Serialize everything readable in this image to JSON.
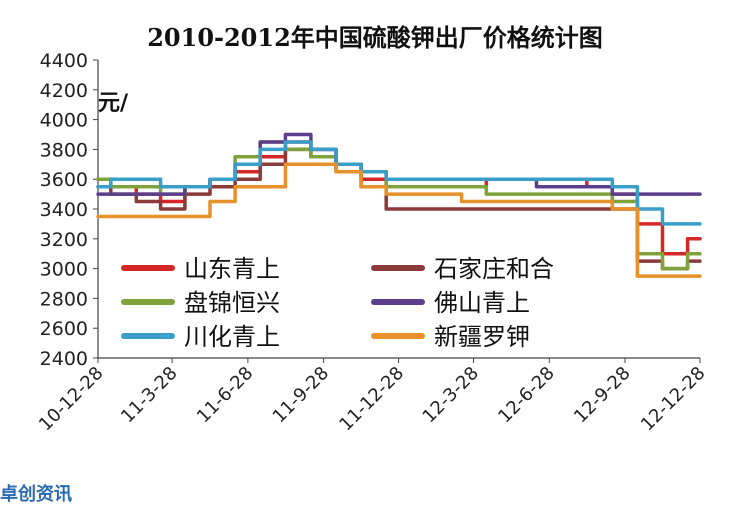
{
  "chart_data": {
    "type": "line",
    "title": "2010-2012年中国硫酸钾出厂价格统计图",
    "ylabel": "元/",
    "ylim": [
      2400,
      4400
    ],
    "yticks": [
      2400,
      2600,
      2800,
      3000,
      3200,
      3400,
      3600,
      3800,
      4000,
      4200,
      4400
    ],
    "x_dates": [
      "2010-12-28",
      "2011-01-28",
      "2011-02-28",
      "2011-03-28",
      "2011-04-28",
      "2011-05-28",
      "2011-06-28",
      "2011-07-28",
      "2011-08-28",
      "2011-09-28",
      "2011-10-28",
      "2011-11-28",
      "2011-12-28",
      "2012-01-28",
      "2012-02-28",
      "2012-03-28",
      "2012-04-28",
      "2012-05-28",
      "2012-06-28",
      "2012-07-28",
      "2012-08-28",
      "2012-09-28",
      "2012-10-28",
      "2012-11-28",
      "2012-12-28"
    ],
    "xticks": [
      "10-12-28",
      "11-3-28",
      "11-6-28",
      "11-9-28",
      "11-12-28",
      "12-3-28",
      "12-6-28",
      "12-9-28",
      "12-12-28"
    ],
    "legend_position": "inside-bottom",
    "series": [
      {
        "name": "山东青上",
        "color": "#d62728",
        "values": [
          3600,
          3550,
          3500,
          3450,
          3550,
          3600,
          3650,
          3750,
          3850,
          3800,
          3700,
          3600,
          3550,
          3550,
          3550,
          3550,
          3600,
          3600,
          3600,
          3600,
          3550,
          3500,
          3300,
          3100,
          3200
        ]
      },
      {
        "name": "石家庄和合",
        "color": "#8b3a3a",
        "values": [
          3550,
          3500,
          3450,
          3400,
          3500,
          3550,
          3600,
          3700,
          3800,
          3750,
          3650,
          3550,
          3400,
          3400,
          3400,
          3400,
          3400,
          3400,
          3400,
          3400,
          3400,
          3400,
          3050,
          3000,
          3050
        ]
      },
      {
        "name": "盘锦恒兴",
        "color": "#7fa33a",
        "values": [
          3600,
          3550,
          3550,
          3500,
          3550,
          3600,
          3750,
          3850,
          3800,
          3750,
          3700,
          3650,
          3550,
          3550,
          3550,
          3550,
          3500,
          3500,
          3500,
          3500,
          3500,
          3450,
          3100,
          3000,
          3100
        ]
      },
      {
        "name": "佛山青上",
        "color": "#5b3f8c",
        "values": [
          3500,
          3500,
          3500,
          3500,
          3550,
          3600,
          3700,
          3850,
          3900,
          3800,
          3700,
          3650,
          3600,
          3600,
          3600,
          3600,
          3600,
          3600,
          3550,
          3550,
          3550,
          3500,
          3500,
          3500,
          3500
        ]
      },
      {
        "name": "川化青上",
        "color": "#3a9fc8",
        "values": [
          3550,
          3600,
          3600,
          3550,
          3550,
          3600,
          3700,
          3800,
          3850,
          3800,
          3700,
          3650,
          3600,
          3600,
          3600,
          3600,
          3600,
          3600,
          3600,
          3600,
          3600,
          3550,
          3400,
          3300,
          3300
        ]
      },
      {
        "name": "新疆罗钾",
        "color": "#e8902a",
        "values": [
          3350,
          3350,
          3350,
          3350,
          3350,
          3450,
          3550,
          3550,
          3700,
          3700,
          3650,
          3550,
          3500,
          3500,
          3500,
          3450,
          3450,
          3450,
          3450,
          3450,
          3450,
          3400,
          2950,
          2950,
          2950
        ]
      }
    ]
  },
  "footer": {
    "brand": "卓创资讯"
  }
}
